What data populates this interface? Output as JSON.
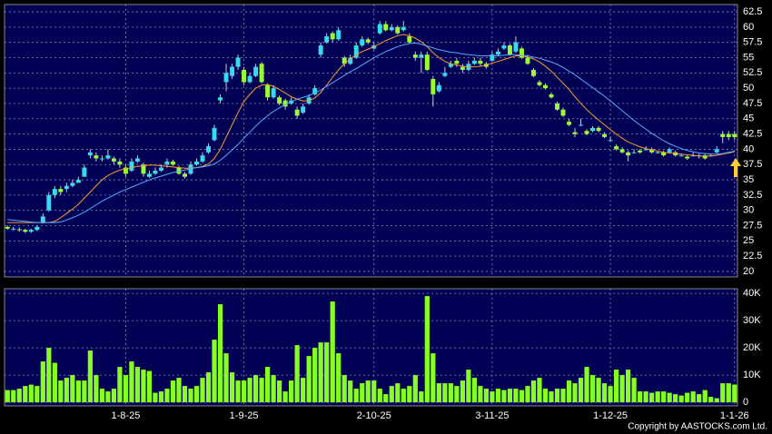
{
  "chart_data": {
    "type": "candlestick",
    "categories": [
      null,
      null,
      null,
      null,
      null,
      null,
      null,
      null,
      null,
      null,
      null,
      null,
      null,
      null,
      null,
      null,
      null,
      null,
      null,
      null,
      "1-8-25",
      null,
      null,
      null,
      null,
      null,
      null,
      null,
      null,
      null,
      null,
      null,
      null,
      null,
      null,
      null,
      null,
      null,
      null,
      null,
      "1-9-25",
      null,
      null,
      null,
      null,
      null,
      null,
      null,
      null,
      null,
      null,
      null,
      null,
      null,
      null,
      null,
      null,
      null,
      null,
      null,
      null,
      null,
      "2-10-25",
      null,
      null,
      null,
      null,
      null,
      null,
      null,
      null,
      null,
      null,
      null,
      null,
      null,
      null,
      null,
      null,
      null,
      null,
      null,
      "3-11-25",
      null,
      null,
      null,
      null,
      null,
      null,
      null,
      null,
      null,
      null,
      null,
      null,
      null,
      null,
      null,
      null,
      null,
      null,
      null,
      "1-12-25",
      null,
      null,
      null,
      null,
      null,
      null,
      null,
      null,
      null,
      null,
      null,
      null,
      null,
      null,
      null,
      null,
      null,
      null,
      null,
      null,
      "1-1-26"
    ],
    "ohlc": [
      [
        27.3,
        27.5,
        26.8,
        27
      ],
      [
        27,
        27.3,
        26.7,
        27
      ],
      [
        26.9,
        27.2,
        26.5,
        26.8
      ],
      [
        26.8,
        27,
        26.3,
        26.5
      ],
      [
        26.5,
        27,
        26.3,
        26.8
      ],
      [
        26.8,
        27.5,
        26.6,
        27.3
      ],
      [
        28,
        29.5,
        27.8,
        29
      ],
      [
        30,
        33,
        29.8,
        32.5
      ],
      [
        32.5,
        34,
        32,
        33.5
      ],
      [
        33.5,
        34,
        32.5,
        33
      ],
      [
        33.5,
        34.5,
        33,
        34
      ],
      [
        34,
        35,
        33.8,
        34.5
      ],
      [
        34.5,
        35.5,
        34.5,
        35
      ],
      [
        35.5,
        37.5,
        35.5,
        37
      ],
      [
        39,
        40,
        38.5,
        39.5
      ],
      [
        39,
        39.5,
        38,
        38.5
      ],
      [
        38.5,
        39,
        38,
        38.5
      ],
      [
        38.5,
        40,
        38.3,
        39
      ],
      [
        38.5,
        38.8,
        37.5,
        38
      ],
      [
        38,
        38.5,
        37,
        37.5
      ],
      [
        37,
        37.5,
        35.5,
        36
      ],
      [
        36.5,
        38.5,
        36.3,
        38
      ],
      [
        38,
        39,
        37.8,
        38.5
      ],
      [
        37.5,
        37.8,
        35.5,
        36
      ],
      [
        35.5,
        36.5,
        35.3,
        36
      ],
      [
        36,
        37,
        35.8,
        36.5
      ],
      [
        36.5,
        37.5,
        36.3,
        37
      ],
      [
        37.5,
        38.5,
        37,
        38
      ],
      [
        38,
        38.3,
        37.3,
        37.5
      ],
      [
        37,
        37.3,
        35.8,
        36
      ],
      [
        36,
        36.3,
        35.2,
        35.5
      ],
      [
        36,
        38,
        35.8,
        37.5
      ],
      [
        37.5,
        38.5,
        37.3,
        38
      ],
      [
        38,
        39.5,
        37.8,
        39
      ],
      [
        39.5,
        41,
        39.3,
        40.5
      ],
      [
        41.5,
        44,
        41.3,
        43.5
      ],
      [
        48,
        49,
        47.5,
        48.5
      ],
      [
        51,
        54,
        49.5,
        52.5
      ],
      [
        52,
        54,
        51.5,
        53.5
      ],
      [
        53.5,
        55.5,
        53,
        55
      ],
      [
        53,
        53.5,
        50.5,
        51
      ],
      [
        51,
        52.5,
        50.8,
        52
      ],
      [
        52,
        54,
        51.8,
        53.5
      ],
      [
        54,
        54.3,
        50.8,
        51
      ],
      [
        50.5,
        50.8,
        48,
        48.5
      ],
      [
        48.5,
        50.5,
        48.3,
        50
      ],
      [
        48.5,
        48.8,
        47.2,
        47.5
      ],
      [
        48,
        48.3,
        46.5,
        47
      ],
      [
        47.5,
        48.5,
        47.3,
        48
      ],
      [
        46.5,
        47,
        45,
        45.5
      ],
      [
        46,
        47.5,
        45.8,
        47
      ],
      [
        47.5,
        49,
        47.3,
        48.5
      ],
      [
        49,
        50.5,
        48.8,
        50
      ],
      [
        55.5,
        57.5,
        55,
        57
      ],
      [
        57.5,
        59,
        57.3,
        58.5
      ],
      [
        59,
        59.3,
        57.5,
        58
      ],
      [
        58,
        60,
        57.8,
        59.5
      ],
      [
        55,
        55.3,
        53.5,
        54
      ],
      [
        54,
        55.5,
        53.8,
        55
      ],
      [
        55,
        57.5,
        54.8,
        57
      ],
      [
        57,
        58.5,
        56.8,
        58
      ],
      [
        58,
        58.3,
        57.2,
        57.5
      ],
      [
        56.5,
        57.5,
        56.3,
        57
      ],
      [
        59,
        61,
        58.8,
        60.5
      ],
      [
        60.5,
        61,
        59.3,
        59.5
      ],
      [
        59.5,
        60.5,
        59.3,
        60
      ],
      [
        60,
        60.3,
        58.8,
        59
      ],
      [
        59.5,
        61,
        59.3,
        60
      ],
      [
        58.5,
        59,
        57.3,
        57.5
      ],
      [
        55.5,
        56,
        54.5,
        55
      ],
      [
        55,
        56,
        52.5,
        55.5
      ],
      [
        55.5,
        56,
        52.8,
        53
      ],
      [
        51.5,
        52,
        47,
        49
      ],
      [
        49.5,
        51,
        49.3,
        50.5
      ],
      [
        52,
        53.5,
        51.8,
        52.5
      ],
      [
        53.5,
        54.5,
        53.3,
        54
      ],
      [
        54.5,
        55,
        53.5,
        54
      ],
      [
        53.5,
        54,
        52.5,
        53
      ],
      [
        53,
        54.5,
        52.8,
        54
      ],
      [
        54,
        55,
        53.8,
        54.5
      ],
      [
        54.5,
        55,
        53.5,
        54
      ],
      [
        54,
        54.3,
        53.2,
        53.5
      ],
      [
        54.5,
        56,
        54.3,
        55.5
      ],
      [
        55.5,
        56.5,
        55.3,
        56
      ],
      [
        56.5,
        57.5,
        56.3,
        57
      ],
      [
        57,
        57.3,
        55.3,
        55.5
      ],
      [
        56,
        58.5,
        55.8,
        57.5
      ],
      [
        56.5,
        56.8,
        54.8,
        55
      ],
      [
        55,
        55.5,
        53.8,
        54
      ],
      [
        53,
        53.3,
        51.8,
        52
      ],
      [
        51,
        51.3,
        50.3,
        50.5
      ],
      [
        50.5,
        50.8,
        49.8,
        50
      ],
      [
        49,
        49.3,
        48.3,
        48.5
      ],
      [
        47.5,
        47.8,
        46.3,
        46.5
      ],
      [
        46.5,
        46.8,
        45.3,
        45.5
      ],
      [
        44.5,
        45,
        43.8,
        44
      ],
      [
        42.8,
        43.5,
        42,
        42.5
      ],
      [
        44,
        45,
        43.8,
        44
      ],
      [
        43,
        43.3,
        42.3,
        42.5
      ],
      [
        43,
        43.8,
        42.8,
        43.5
      ],
      [
        43.5,
        43.8,
        42.8,
        43
      ],
      [
        42.5,
        42.8,
        41.8,
        42
      ],
      [
        41.5,
        42,
        41.3,
        41.5
      ],
      [
        40.5,
        40.8,
        39.8,
        40
      ],
      [
        40,
        40.3,
        39.3,
        39.5
      ],
      [
        39.5,
        39.8,
        38,
        39
      ],
      [
        39.5,
        40,
        39.3,
        39.5
      ],
      [
        39.8,
        40,
        39.3,
        39.5
      ],
      [
        40,
        40.5,
        39.8,
        40
      ],
      [
        40,
        40.3,
        39.3,
        39.5
      ],
      [
        39.5,
        39.8,
        39.3,
        39.5
      ],
      [
        39.5,
        39.8,
        38.8,
        39
      ],
      [
        39.5,
        40.3,
        39.3,
        40
      ],
      [
        39.5,
        39.8,
        38.8,
        39
      ],
      [
        39,
        39.3,
        38.8,
        39
      ],
      [
        38.8,
        39,
        38.3,
        38.5
      ],
      [
        39,
        39.5,
        38.8,
        39
      ],
      [
        39,
        39.3,
        38.5,
        39
      ],
      [
        39,
        39.3,
        38.3,
        38.5
      ],
      [
        39,
        39.3,
        38.8,
        39
      ],
      [
        39.5,
        40.5,
        39.3,
        40
      ],
      [
        42.5,
        43,
        41,
        42
      ],
      [
        42.5,
        43,
        41.5,
        42
      ],
      [
        42.5,
        43,
        41.5,
        42
      ]
    ],
    "up_color": "#33ddee",
    "down_color": "#99ff33",
    "lines": [
      {
        "color": "#ff9933",
        "values": [
          28,
          28,
          28,
          28,
          28,
          28,
          28,
          28,
          28.2,
          28.8,
          29.5,
          30.2,
          31,
          32,
          33,
          34,
          35,
          35.7,
          36.2,
          36.6,
          36.8,
          37,
          37.2,
          37.3,
          37.4,
          37.4,
          37.3,
          37.2,
          37.1,
          37.0,
          36.9,
          36.9,
          37,
          37.2,
          37.6,
          38.5,
          40,
          42,
          44,
          46,
          47.8,
          49,
          50,
          50.5,
          50.6,
          50.3,
          49.8,
          49.2,
          48.6,
          48.2,
          47.9,
          48,
          48.4,
          49.3,
          50.5,
          51.8,
          53,
          54,
          54.8,
          55.5,
          56,
          56.4,
          56.8,
          57.3,
          57.8,
          58.2,
          58.6,
          58.8,
          58.6,
          58.2,
          57.6,
          56.8,
          55.8,
          55,
          54.4,
          54,
          53.8,
          53.6,
          53.5,
          53.5,
          53.6,
          53.8,
          54.1,
          54.4,
          54.7,
          55,
          55.3,
          55.3,
          55.1,
          54.8,
          54.3,
          53.6,
          52.8,
          51.8,
          50.8,
          49.8,
          48.6,
          47.5,
          46.5,
          45.6,
          44.8,
          44,
          43.2,
          42.5,
          41.8,
          41.2,
          40.8,
          40.4,
          40.1,
          39.9,
          39.7,
          39.5,
          39.4,
          39.3,
          39.2,
          39.1,
          39.0,
          38.9,
          38.9,
          38.9,
          39,
          39.2,
          39.4,
          39.6
        ]
      },
      {
        "color": "#55aaff",
        "values": [
          28.5,
          28.4,
          28.3,
          28.2,
          28.1,
          28.0,
          28.0,
          28.0,
          28.0,
          28.1,
          28.4,
          28.8,
          29.2,
          29.7,
          30.3,
          30.9,
          31.5,
          32,
          32.5,
          33,
          33.4,
          33.8,
          34.2,
          34.6,
          35,
          35.3,
          35.6,
          35.9,
          36.2,
          36.4,
          36.6,
          36.8,
          37,
          37.1,
          37.3,
          37.6,
          38.2,
          39,
          39.9,
          40.8,
          41.8,
          42.8,
          43.8,
          44.7,
          45.5,
          46.2,
          46.8,
          47.3,
          47.8,
          48.2,
          48.5,
          48.8,
          49.2,
          49.7,
          50.3,
          50.9,
          51.5,
          52.1,
          52.7,
          53.2,
          53.8,
          54.4,
          55,
          55.5,
          56,
          56.4,
          56.8,
          57.1,
          57.3,
          57.4,
          57.2,
          56.9,
          56.6,
          56.3,
          56.1,
          55.9,
          55.8,
          55.6,
          55.5,
          55.4,
          55.3,
          55.3,
          55.3,
          55.3,
          55.4,
          55.5,
          55.5,
          55.4,
          55.3,
          55.1,
          54.9,
          54.6,
          54.3,
          53.9,
          53.4,
          52.8,
          52.2,
          51.5,
          50.8,
          50.1,
          49.4,
          48.7,
          47.9,
          47.1,
          46.3,
          45.5,
          44.7,
          44,
          43.3,
          42.6,
          42,
          41.4,
          40.9,
          40.5,
          40.1,
          39.8,
          39.6,
          39.4,
          39.3,
          39.2,
          39.2,
          39.3,
          39.5,
          39.7
        ]
      }
    ],
    "ylim": [
      19.1,
      63.7
    ],
    "yticks": [
      20,
      22.5,
      25,
      27.5,
      30,
      32.5,
      35,
      37.5,
      40,
      42.5,
      45,
      47.5,
      50,
      52.5,
      55,
      57.5,
      60,
      62.5
    ],
    "volume": [
      4500,
      4500,
      5000,
      6000,
      6500,
      6000,
      15000,
      20000,
      14500,
      8000,
      9000,
      10000,
      8000,
      8000,
      19000,
      10000,
      5000,
      4000,
      5000,
      13000,
      10000,
      15000,
      13000,
      12000,
      11500,
      3500,
      4000,
      5000,
      8000,
      9000,
      6000,
      5000,
      6000,
      9000,
      11000,
      23000,
      36000,
      18000,
      11000,
      8000,
      8000,
      9000,
      10000,
      9000,
      13000,
      10000,
      8000,
      4000,
      8000,
      21000,
      9000,
      17000,
      20000,
      22000,
      22000,
      37000,
      18000,
      10000,
      8000,
      5000,
      7000,
      8000,
      8000,
      5000,
      3000,
      6000,
      7000,
      5000,
      6000,
      10000,
      4000,
      39000,
      18000,
      7000,
      7000,
      7000,
      6000,
      8000,
      12000,
      9000,
      6000,
      5000,
      4000,
      5000,
      4500,
      5000,
      5000,
      4500,
      6000,
      8000,
      9000,
      5000,
      4000,
      5000,
      5000,
      8000,
      7000,
      9000,
      13000,
      10000,
      9000,
      7000,
      6000,
      12000,
      10000,
      12000,
      9000,
      4000,
      4000,
      3500,
      4000,
      4000,
      3500,
      3000,
      2500,
      3500,
      4000,
      3000,
      4500,
      2000,
      1500,
      7000,
      7000,
      6500
    ],
    "volume_color": "#88ff22",
    "vlim": [
      -1300,
      41700
    ],
    "vticks": [
      0,
      {
        "value": 10000,
        "label": "10K"
      },
      {
        "value": 20000,
        "label": "20K"
      },
      {
        "value": 30000,
        "label": "30K"
      },
      {
        "value": 40000,
        "label": "40K"
      }
    ],
    "grid": true,
    "copyright": "Copyright by AASTOCKS.com Ltd."
  }
}
